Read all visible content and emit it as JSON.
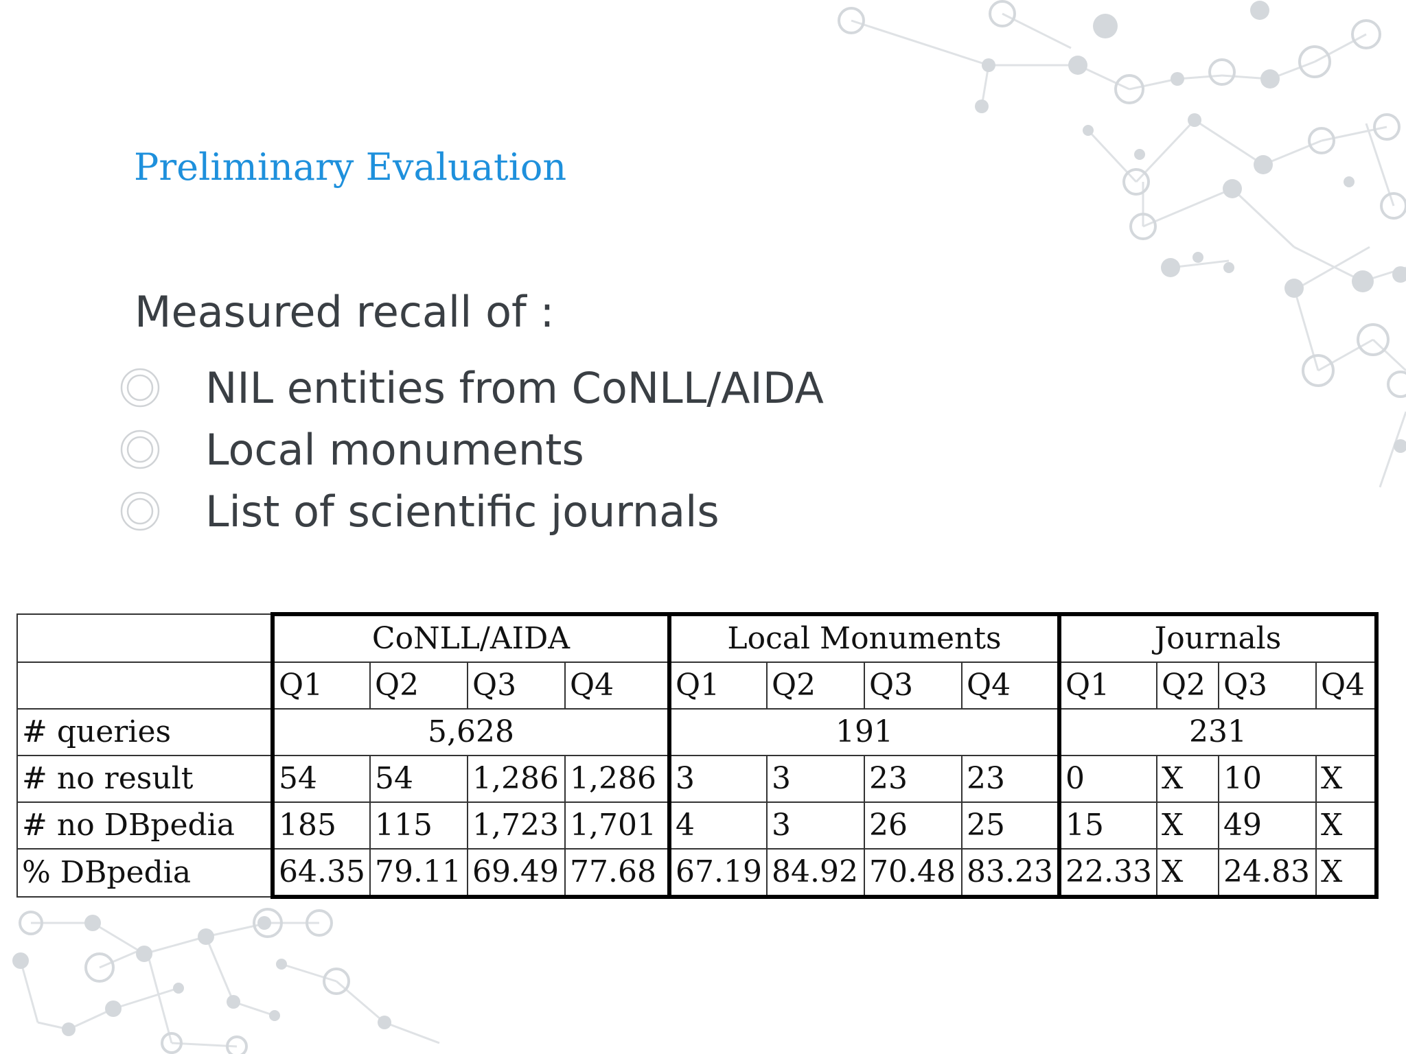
{
  "slide": {
    "title": "Preliminary Evaluation",
    "intro": "Measured recall of :",
    "bullets": [
      "NIL entities from CoNLL/AIDA",
      "Local monuments",
      "List of scientific journals"
    ]
  },
  "table": {
    "groups": [
      "CoNLL/AIDA",
      "Local Monuments",
      "Journals"
    ],
    "quarters": [
      "Q1",
      "Q2",
      "Q3",
      "Q4"
    ],
    "queries": {
      "label": "# queries",
      "values": [
        "5,628",
        "191",
        "231"
      ]
    },
    "rows": [
      {
        "label": "# no result",
        "cells": [
          "54",
          "54",
          "1,286",
          "1,286",
          "3",
          "3",
          "23",
          "23",
          "0",
          "X",
          "10",
          "X"
        ]
      },
      {
        "label": "# no DBpedia",
        "cells": [
          "185",
          "115",
          "1,723",
          "1,701",
          "4",
          "3",
          "26",
          "25",
          "15",
          "X",
          "49",
          "X"
        ]
      },
      {
        "label": "% DBpedia",
        "cells": [
          "64.35",
          "79.11",
          "69.49",
          "77.68",
          "67.19",
          "84.92",
          "70.48",
          "83.23",
          "22.33",
          "X",
          "24.83",
          "X"
        ]
      }
    ]
  },
  "colors": {
    "title": "#1e90dc",
    "body_text": "#3a3f44",
    "network": "#d4d8dc"
  }
}
